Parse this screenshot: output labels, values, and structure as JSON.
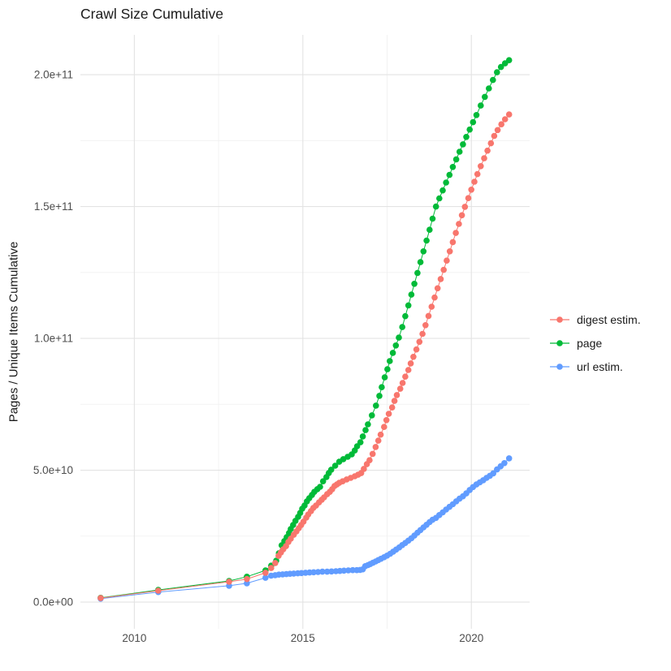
{
  "chart_data": {
    "type": "scatter",
    "title": "Crawl Size Cumulative",
    "xlabel": "",
    "ylabel": "Pages / Unique Items Cumulative",
    "legend_position": "right",
    "grid": true,
    "value_unit": "billions of pages (1e9); y axis shown in scientific notation",
    "x_axis": {
      "tick_labels": [
        "2010",
        "2015",
        "2020"
      ],
      "tick_values": [
        2010,
        2015,
        2020
      ],
      "minor_tick_values": [
        2012.5,
        2017.5
      ],
      "range_years": [
        2008.4,
        2021.73
      ]
    },
    "y_axis": {
      "tick_labels": [
        "0.0e+00",
        "5.0e+10",
        "1.0e+11",
        "1.5e+11",
        "2.0e+11"
      ],
      "tick_values_billions": [
        0,
        50,
        100,
        150,
        200
      ],
      "minor_tick_values_billions": [
        25,
        75,
        125,
        175
      ],
      "range_billions": [
        -10.15,
        215.1
      ]
    },
    "series": [
      {
        "name": "digest estim.",
        "color": "#F8766D",
        "points_year_billions": [
          [
            2009.0,
            1.5
          ],
          [
            2010.71,
            4.3
          ],
          [
            2012.81,
            7.7
          ],
          [
            2013.34,
            8.7
          ],
          [
            2013.89,
            11.1
          ],
          [
            2014.06,
            12.9
          ],
          [
            2014.18,
            14.8
          ],
          [
            2014.28,
            17.5
          ],
          [
            2014.35,
            18.8
          ],
          [
            2014.42,
            20.0
          ],
          [
            2014.5,
            21.2
          ],
          [
            2014.57,
            22.8
          ],
          [
            2014.64,
            24.0
          ],
          [
            2014.73,
            25.5
          ],
          [
            2014.81,
            26.8
          ],
          [
            2014.88,
            28.0
          ],
          [
            2014.95,
            29.2
          ],
          [
            2015.02,
            30.5
          ],
          [
            2015.1,
            32.0
          ],
          [
            2015.16,
            33.2
          ],
          [
            2015.24,
            34.5
          ],
          [
            2015.31,
            35.7
          ],
          [
            2015.39,
            36.6
          ],
          [
            2015.48,
            37.8
          ],
          [
            2015.56,
            38.8
          ],
          [
            2015.63,
            39.7
          ],
          [
            2015.72,
            40.9
          ],
          [
            2015.8,
            41.8
          ],
          [
            2015.87,
            42.8
          ],
          [
            2015.94,
            44.0
          ],
          [
            2016.01,
            44.6
          ],
          [
            2016.08,
            45.2
          ],
          [
            2016.18,
            45.8
          ],
          [
            2016.3,
            46.5
          ],
          [
            2016.42,
            47.1
          ],
          [
            2016.54,
            47.7
          ],
          [
            2016.64,
            48.3
          ],
          [
            2016.73,
            48.9
          ],
          [
            2016.81,
            50.5
          ],
          [
            2016.9,
            52.3
          ],
          [
            2016.98,
            53.8
          ],
          [
            2017.07,
            56.2
          ],
          [
            2017.16,
            58.8
          ],
          [
            2017.24,
            61.2
          ],
          [
            2017.31,
            63.5
          ],
          [
            2017.41,
            66.4
          ],
          [
            2017.48,
            69.0
          ],
          [
            2017.55,
            71.4
          ],
          [
            2017.65,
            73.8
          ],
          [
            2017.72,
            76.3
          ],
          [
            2017.79,
            78.5
          ],
          [
            2017.89,
            80.9
          ],
          [
            2017.96,
            83.1
          ],
          [
            2018.04,
            85.5
          ],
          [
            2018.13,
            88.0
          ],
          [
            2018.2,
            90.5
          ],
          [
            2018.28,
            93.0
          ],
          [
            2018.37,
            95.8
          ],
          [
            2018.46,
            98.7
          ],
          [
            2018.55,
            101.7
          ],
          [
            2018.64,
            105.0
          ],
          [
            2018.73,
            108.5
          ],
          [
            2018.82,
            112.0
          ],
          [
            2018.91,
            115.5
          ],
          [
            2019.0,
            119.0
          ],
          [
            2019.09,
            122.5
          ],
          [
            2019.18,
            126.0
          ],
          [
            2019.27,
            129.5
          ],
          [
            2019.36,
            133.0
          ],
          [
            2019.45,
            136.5
          ],
          [
            2019.54,
            140.0
          ],
          [
            2019.63,
            143.4
          ],
          [
            2019.72,
            146.7
          ],
          [
            2019.81,
            149.9
          ],
          [
            2019.91,
            153.2
          ],
          [
            2020.0,
            156.4
          ],
          [
            2020.09,
            159.4
          ],
          [
            2020.18,
            162.3
          ],
          [
            2020.28,
            165.3
          ],
          [
            2020.38,
            168.3
          ],
          [
            2020.48,
            171.2
          ],
          [
            2020.58,
            174.0
          ],
          [
            2020.68,
            176.8
          ],
          [
            2020.78,
            179.0
          ],
          [
            2020.89,
            181.2
          ],
          [
            2021.0,
            183.1
          ],
          [
            2021.12,
            184.9
          ]
        ]
      },
      {
        "name": "page",
        "color": "#00BA38",
        "points_year_billions": [
          [
            2009.0,
            1.6
          ],
          [
            2010.71,
            4.6
          ],
          [
            2012.81,
            8.0
          ],
          [
            2013.34,
            9.6
          ],
          [
            2013.89,
            12.0
          ],
          [
            2014.06,
            13.8
          ],
          [
            2014.21,
            15.7
          ],
          [
            2014.29,
            18.5
          ],
          [
            2014.37,
            21.5
          ],
          [
            2014.45,
            23.1
          ],
          [
            2014.52,
            24.6
          ],
          [
            2014.59,
            26.2
          ],
          [
            2014.64,
            27.7
          ],
          [
            2014.71,
            29.2
          ],
          [
            2014.78,
            30.8
          ],
          [
            2014.86,
            32.3
          ],
          [
            2014.92,
            33.8
          ],
          [
            2014.98,
            35.4
          ],
          [
            2015.05,
            36.6
          ],
          [
            2015.12,
            38.2
          ],
          [
            2015.19,
            39.4
          ],
          [
            2015.27,
            40.6
          ],
          [
            2015.34,
            41.8
          ],
          [
            2015.43,
            42.8
          ],
          [
            2015.51,
            43.7
          ],
          [
            2015.6,
            45.8
          ],
          [
            2015.7,
            47.4
          ],
          [
            2015.77,
            48.9
          ],
          [
            2015.84,
            50.2
          ],
          [
            2015.96,
            51.7
          ],
          [
            2016.08,
            53.2
          ],
          [
            2016.2,
            54.2
          ],
          [
            2016.33,
            55.1
          ],
          [
            2016.45,
            56.0
          ],
          [
            2016.54,
            57.5
          ],
          [
            2016.61,
            59.1
          ],
          [
            2016.71,
            60.6
          ],
          [
            2016.78,
            62.8
          ],
          [
            2016.86,
            65.2
          ],
          [
            2016.93,
            67.4
          ],
          [
            2017.05,
            70.8
          ],
          [
            2017.17,
            74.5
          ],
          [
            2017.27,
            78.2
          ],
          [
            2017.34,
            81.5
          ],
          [
            2017.43,
            85.2
          ],
          [
            2017.51,
            88.3
          ],
          [
            2017.58,
            91.4
          ],
          [
            2017.67,
            94.5
          ],
          [
            2017.76,
            97.3
          ],
          [
            2017.85,
            100.3
          ],
          [
            2017.95,
            104.3
          ],
          [
            2018.04,
            108.4
          ],
          [
            2018.13,
            112.5
          ],
          [
            2018.22,
            116.6
          ],
          [
            2018.31,
            120.7
          ],
          [
            2018.4,
            124.8
          ],
          [
            2018.49,
            128.9
          ],
          [
            2018.58,
            133.0
          ],
          [
            2018.67,
            137.1
          ],
          [
            2018.76,
            141.2
          ],
          [
            2018.85,
            145.4
          ],
          [
            2018.95,
            150.0
          ],
          [
            2019.05,
            153.1
          ],
          [
            2019.15,
            156.1
          ],
          [
            2019.25,
            159.1
          ],
          [
            2019.35,
            162.0
          ],
          [
            2019.45,
            165.0
          ],
          [
            2019.55,
            167.9
          ],
          [
            2019.65,
            170.8
          ],
          [
            2019.75,
            173.6
          ],
          [
            2019.85,
            176.4
          ],
          [
            2019.95,
            179.2
          ],
          [
            2020.05,
            182.0
          ],
          [
            2020.15,
            184.7
          ],
          [
            2020.28,
            188.3
          ],
          [
            2020.4,
            191.6
          ],
          [
            2020.52,
            194.8
          ],
          [
            2020.64,
            198.0
          ],
          [
            2020.76,
            200.9
          ],
          [
            2020.88,
            202.9
          ],
          [
            2021.0,
            204.3
          ],
          [
            2021.12,
            205.5
          ]
        ]
      },
      {
        "name": "url estim.",
        "color": "#619CFF",
        "points_year_billions": [
          [
            2009.0,
            1.3
          ],
          [
            2010.71,
            3.8
          ],
          [
            2012.81,
            6.2
          ],
          [
            2013.34,
            7.1
          ],
          [
            2013.89,
            9.2
          ],
          [
            2014.06,
            10.0
          ],
          [
            2014.18,
            10.2
          ],
          [
            2014.29,
            10.4
          ],
          [
            2014.4,
            10.5
          ],
          [
            2014.51,
            10.6
          ],
          [
            2014.62,
            10.7
          ],
          [
            2014.73,
            10.8
          ],
          [
            2014.85,
            10.9
          ],
          [
            2014.96,
            11.0
          ],
          [
            2015.08,
            11.1
          ],
          [
            2015.2,
            11.2
          ],
          [
            2015.32,
            11.3
          ],
          [
            2015.45,
            11.4
          ],
          [
            2015.58,
            11.5
          ],
          [
            2015.72,
            11.5
          ],
          [
            2015.85,
            11.6
          ],
          [
            2015.98,
            11.7
          ],
          [
            2016.1,
            11.8
          ],
          [
            2016.22,
            11.9
          ],
          [
            2016.35,
            12.0
          ],
          [
            2016.48,
            12.1
          ],
          [
            2016.6,
            12.1
          ],
          [
            2016.7,
            12.2
          ],
          [
            2016.78,
            12.4
          ],
          [
            2016.85,
            13.6
          ],
          [
            2016.93,
            14.0
          ],
          [
            2017.0,
            14.4
          ],
          [
            2017.08,
            14.9
          ],
          [
            2017.16,
            15.4
          ],
          [
            2017.24,
            15.9
          ],
          [
            2017.32,
            16.4
          ],
          [
            2017.41,
            17.0
          ],
          [
            2017.5,
            17.6
          ],
          [
            2017.59,
            18.3
          ],
          [
            2017.68,
            19.1
          ],
          [
            2017.77,
            19.9
          ],
          [
            2017.86,
            20.7
          ],
          [
            2017.95,
            21.6
          ],
          [
            2018.04,
            22.4
          ],
          [
            2018.13,
            23.3
          ],
          [
            2018.22,
            24.2
          ],
          [
            2018.31,
            25.2
          ],
          [
            2018.4,
            26.3
          ],
          [
            2018.49,
            27.3
          ],
          [
            2018.58,
            28.3
          ],
          [
            2018.67,
            29.3
          ],
          [
            2018.76,
            30.3
          ],
          [
            2018.85,
            31.2
          ],
          [
            2018.95,
            31.9
          ],
          [
            2019.05,
            33.0
          ],
          [
            2019.15,
            34.0
          ],
          [
            2019.25,
            35.1
          ],
          [
            2019.35,
            36.1
          ],
          [
            2019.45,
            37.1
          ],
          [
            2019.55,
            38.2
          ],
          [
            2019.65,
            39.2
          ],
          [
            2019.75,
            40.1
          ],
          [
            2019.85,
            41.2
          ],
          [
            2019.95,
            42.5
          ],
          [
            2020.05,
            43.6
          ],
          [
            2020.15,
            44.6
          ],
          [
            2020.25,
            45.4
          ],
          [
            2020.35,
            46.2
          ],
          [
            2020.45,
            47.1
          ],
          [
            2020.55,
            47.9
          ],
          [
            2020.65,
            48.8
          ],
          [
            2020.76,
            50.3
          ],
          [
            2020.87,
            51.5
          ],
          [
            2020.98,
            52.7
          ],
          [
            2021.12,
            54.5
          ]
        ]
      }
    ],
    "colors": {
      "grid_major": "#e3e3e3",
      "grid_minor": "#f0f0f0",
      "tick_text": "#4d4d4d",
      "title_text": "#1a1a1a"
    }
  }
}
